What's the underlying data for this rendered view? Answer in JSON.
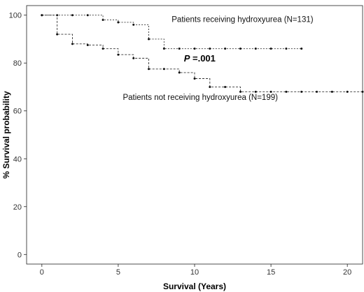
{
  "chart_data": {
    "type": "line",
    "step": true,
    "xlabel": "Survival (Years)",
    "ylabel": "% Survival probability",
    "xlim": [
      -1,
      21
    ],
    "ylim": [
      -4,
      104
    ],
    "xticks": [
      0,
      5,
      10,
      15,
      20
    ],
    "yticks": [
      0,
      20,
      40,
      60,
      80,
      100
    ],
    "grid": false,
    "series": [
      {
        "name": "Patients receiving hydroxyurea (N=131)",
        "line_style": "dotted",
        "x": [
          0,
          1,
          2,
          3,
          4,
          5,
          6,
          7,
          8,
          9,
          10,
          11,
          12,
          13,
          14,
          15,
          16,
          17
        ],
        "y": [
          100,
          100,
          100,
          100,
          98,
          97,
          96,
          90,
          86,
          86,
          86,
          86,
          86,
          86,
          86,
          86,
          86,
          86
        ]
      },
      {
        "name": "Patients not receiving hydroxyurea (N=199)",
        "line_style": "dashed",
        "x": [
          0,
          1,
          2,
          3,
          4,
          5,
          6,
          7,
          8,
          9,
          10,
          11,
          12,
          13,
          14,
          15,
          16,
          17,
          18,
          19,
          20,
          21
        ],
        "y": [
          100,
          92,
          88,
          87.5,
          86,
          83.5,
          82,
          77.5,
          77.5,
          76,
          73.5,
          70,
          70,
          68,
          68,
          68,
          68,
          68,
          68,
          68,
          68,
          68
        ]
      }
    ],
    "annotations": [
      {
        "label": "Patients receiving hydroxyurea (N=131)",
        "series": 0
      },
      {
        "label": "Patients not receiving hydroxyurea (N=199)",
        "series": 1
      }
    ],
    "p_value": {
      "prefix": "P",
      "text": " =.001"
    }
  }
}
